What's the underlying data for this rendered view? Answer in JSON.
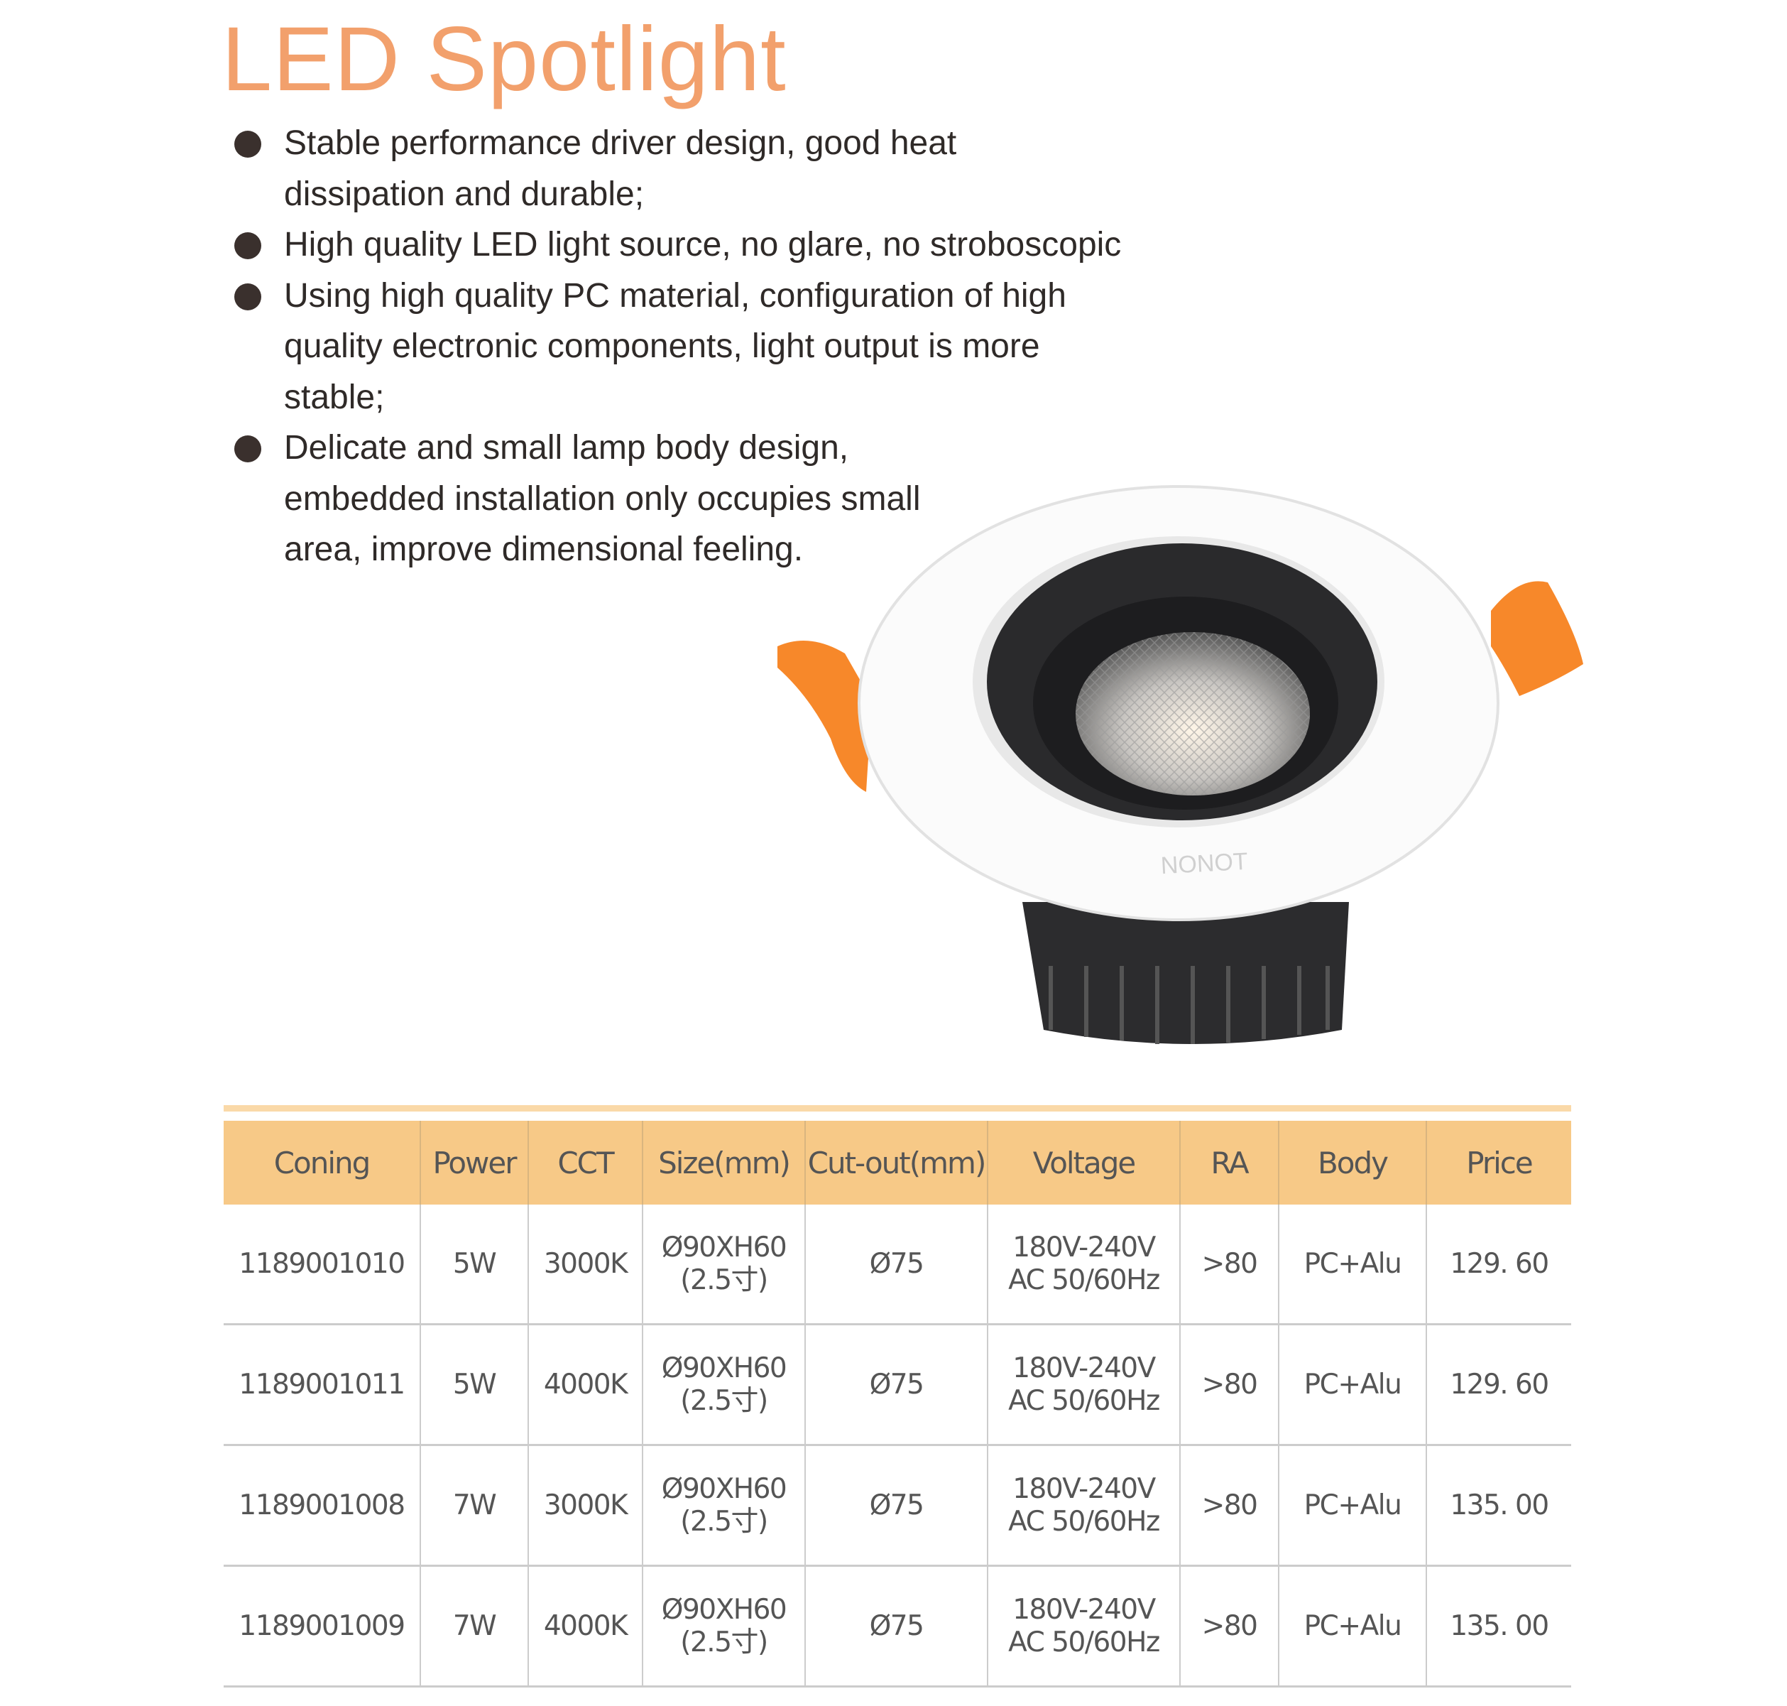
{
  "title": "LED Spotlight",
  "features": [
    "Stable performance driver design, good heat dissipation and durable;",
    "High quality LED light source, no glare, no stroboscopic",
    "Using high quality PC material, configuration of high quality electronic components, light output is more stable;",
    "Delicate and small lamp body design, embedded installation only occupies small area, improve dimensional feeling."
  ],
  "product_image": {
    "brand_mark": "NONOT",
    "colors": {
      "ring": "#ffffff",
      "inner": "#2a2a2c",
      "clips": "#F7882A"
    }
  },
  "table": {
    "headers": [
      "Coning",
      "Power",
      "CCT",
      "Size(mm)",
      "Cut-out(mm)",
      "Voltage",
      "RA",
      "Body",
      "Price"
    ],
    "rows": [
      {
        "coning": "1189001010",
        "power": "5W",
        "cct": "3000K",
        "size1": "Ø90XH60",
        "size2": "(2.5寸)",
        "cutout": "Ø75",
        "volt1": "180V-240V",
        "volt2": "AC 50/60Hz",
        "ra": ">80",
        "body": "PC+Alu",
        "price": "129. 60"
      },
      {
        "coning": "1189001011",
        "power": "5W",
        "cct": "4000K",
        "size1": "Ø90XH60",
        "size2": "(2.5寸)",
        "cutout": "Ø75",
        "volt1": "180V-240V",
        "volt2": "AC 50/60Hz",
        "ra": ">80",
        "body": "PC+Alu",
        "price": "129. 60"
      },
      {
        "coning": "1189001008",
        "power": "7W",
        "cct": "3000K",
        "size1": "Ø90XH60",
        "size2": "(2.5寸)",
        "cutout": "Ø75",
        "volt1": "180V-240V",
        "volt2": "AC 50/60Hz",
        "ra": ">80",
        "body": "PC+Alu",
        "price": "135. 00"
      },
      {
        "coning": "1189001009",
        "power": "7W",
        "cct": "4000K",
        "size1": "Ø90XH60",
        "size2": "(2.5寸)",
        "cutout": "Ø75",
        "volt1": "180V-240V",
        "volt2": "AC 50/60Hz",
        "ra": ">80",
        "body": "PC+Alu",
        "price": "135. 00"
      }
    ]
  },
  "colors": {
    "title": "#F2A06C",
    "header_bg": "#F7C987",
    "stripe": "#FAD9A8"
  }
}
